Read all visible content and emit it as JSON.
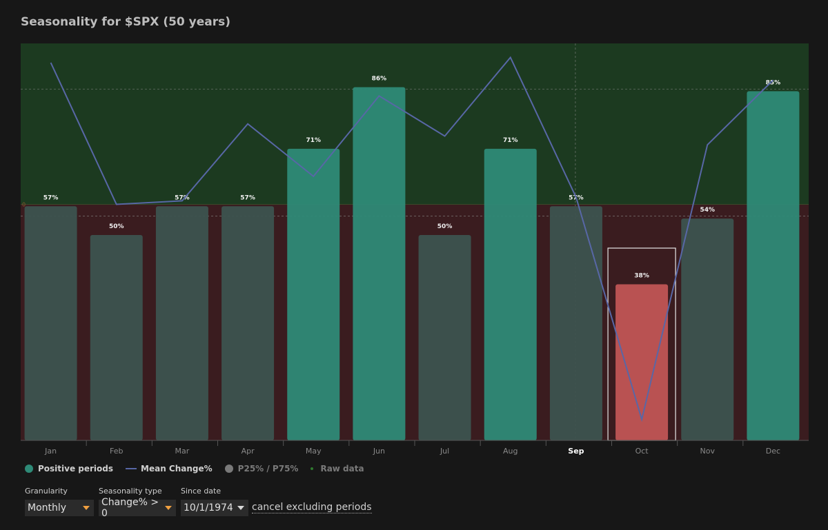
{
  "title": "Seasonality for $SPX (50 years)",
  "colors": {
    "positive_band": "#1c3a20",
    "negative_band": "#3a1c1f",
    "bar_positive": "#2e8a77",
    "bar_neutral": "#3c534f",
    "bar_negative": "#c05555",
    "mean_line": "#5867a6"
  },
  "legend": {
    "positive": "Positive periods",
    "mean": "Mean Change%",
    "quartiles": "P25% / P75%",
    "raw": "Raw data"
  },
  "controls": {
    "granularity": {
      "label": "Granularity",
      "value": "Monthly"
    },
    "seasonality_type": {
      "label": "Seasonality type",
      "value": "Change% > 0"
    },
    "since_date": {
      "label": "Since date",
      "value": "10/1/1974"
    },
    "cancel_link": "cancel excluding periods"
  },
  "chart_data": {
    "type": "bar",
    "categories": [
      "Jan",
      "Feb",
      "Mar",
      "Apr",
      "May",
      "Jun",
      "Jul",
      "Aug",
      "Sep",
      "Oct",
      "Nov",
      "Dec"
    ],
    "series": [
      {
        "name": "Positive periods",
        "values": [
          57,
          50,
          57,
          57,
          71,
          86,
          50,
          71,
          57,
          38,
          54,
          85
        ],
        "labels": [
          "57%",
          "50%",
          "57%",
          "57%",
          "71%",
          "86%",
          "50%",
          "71%",
          "57%",
          "38%",
          "54%",
          "85%"
        ]
      },
      {
        "name": "Mean Change%",
        "values": [
          0.81,
          0.0,
          0.02,
          0.46,
          0.16,
          0.62,
          0.39,
          0.84,
          0.04,
          -1.23,
          0.34,
          0.71
        ]
      }
    ],
    "ylim": [
      0,
      100
    ],
    "mean_ylim": [
      -1.35,
      0.92
    ],
    "zero_label": "0",
    "highlight_category": "Sep",
    "selected_category": "Oct",
    "bar_style": [
      "neutral",
      "neutral",
      "neutral",
      "neutral",
      "positive",
      "positive",
      "neutral",
      "positive",
      "neutral",
      "negative",
      "neutral",
      "positive"
    ],
    "grid": true
  }
}
